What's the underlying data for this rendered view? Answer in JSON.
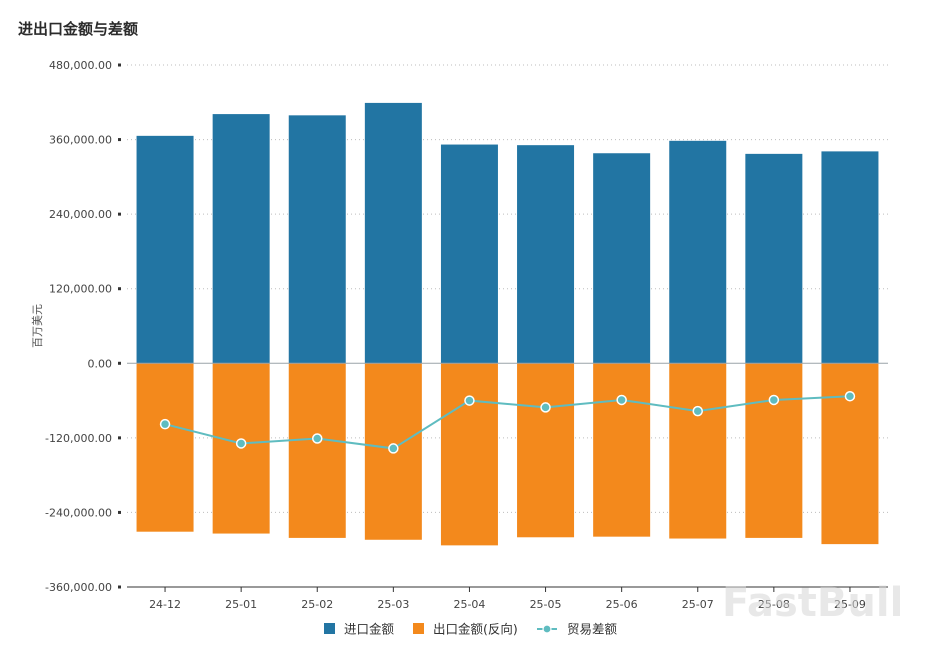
{
  "chart_data": {
    "type": "bar",
    "title": "进出口金额与差额",
    "ylabel": "百万美元",
    "xlabel": "",
    "ylim": [
      -360000,
      480000
    ],
    "yticks": [
      480000,
      360000,
      240000,
      120000,
      0,
      -120000,
      -240000,
      -360000
    ],
    "ytick_labels": [
      "480,000.00",
      "360,000.00",
      "240,000.00",
      "120,000.00",
      "0.00",
      "-120,000.00",
      "-240,000.00",
      "-360,000.00"
    ],
    "categories": [
      "24-12",
      "25-01",
      "25-02",
      "25-03",
      "25-04",
      "25-05",
      "25-06",
      "25-07",
      "25-08",
      "25-09"
    ],
    "series": [
      {
        "name": "进口金额",
        "type": "bar",
        "color": "#2275a3",
        "values": [
          366000,
          401000,
          399000,
          419000,
          352000,
          351000,
          338000,
          358000,
          337000,
          341000
        ]
      },
      {
        "name": "出口金额(反向)",
        "type": "bar",
        "color": "#f3891c",
        "values": [
          -271000,
          -274000,
          -281000,
          -284000,
          -293000,
          -280000,
          -279000,
          -282000,
          -281000,
          -291000
        ]
      },
      {
        "name": "贸易差额",
        "type": "line",
        "color": "#5fbcc0",
        "values": [
          -98000,
          -129000,
          -121000,
          -137000,
          -60000,
          -71000,
          -59000,
          -77000,
          -59000,
          -53000
        ]
      }
    ],
    "legend_position": "bottom-center",
    "grid": true
  },
  "watermark": "FastBull"
}
